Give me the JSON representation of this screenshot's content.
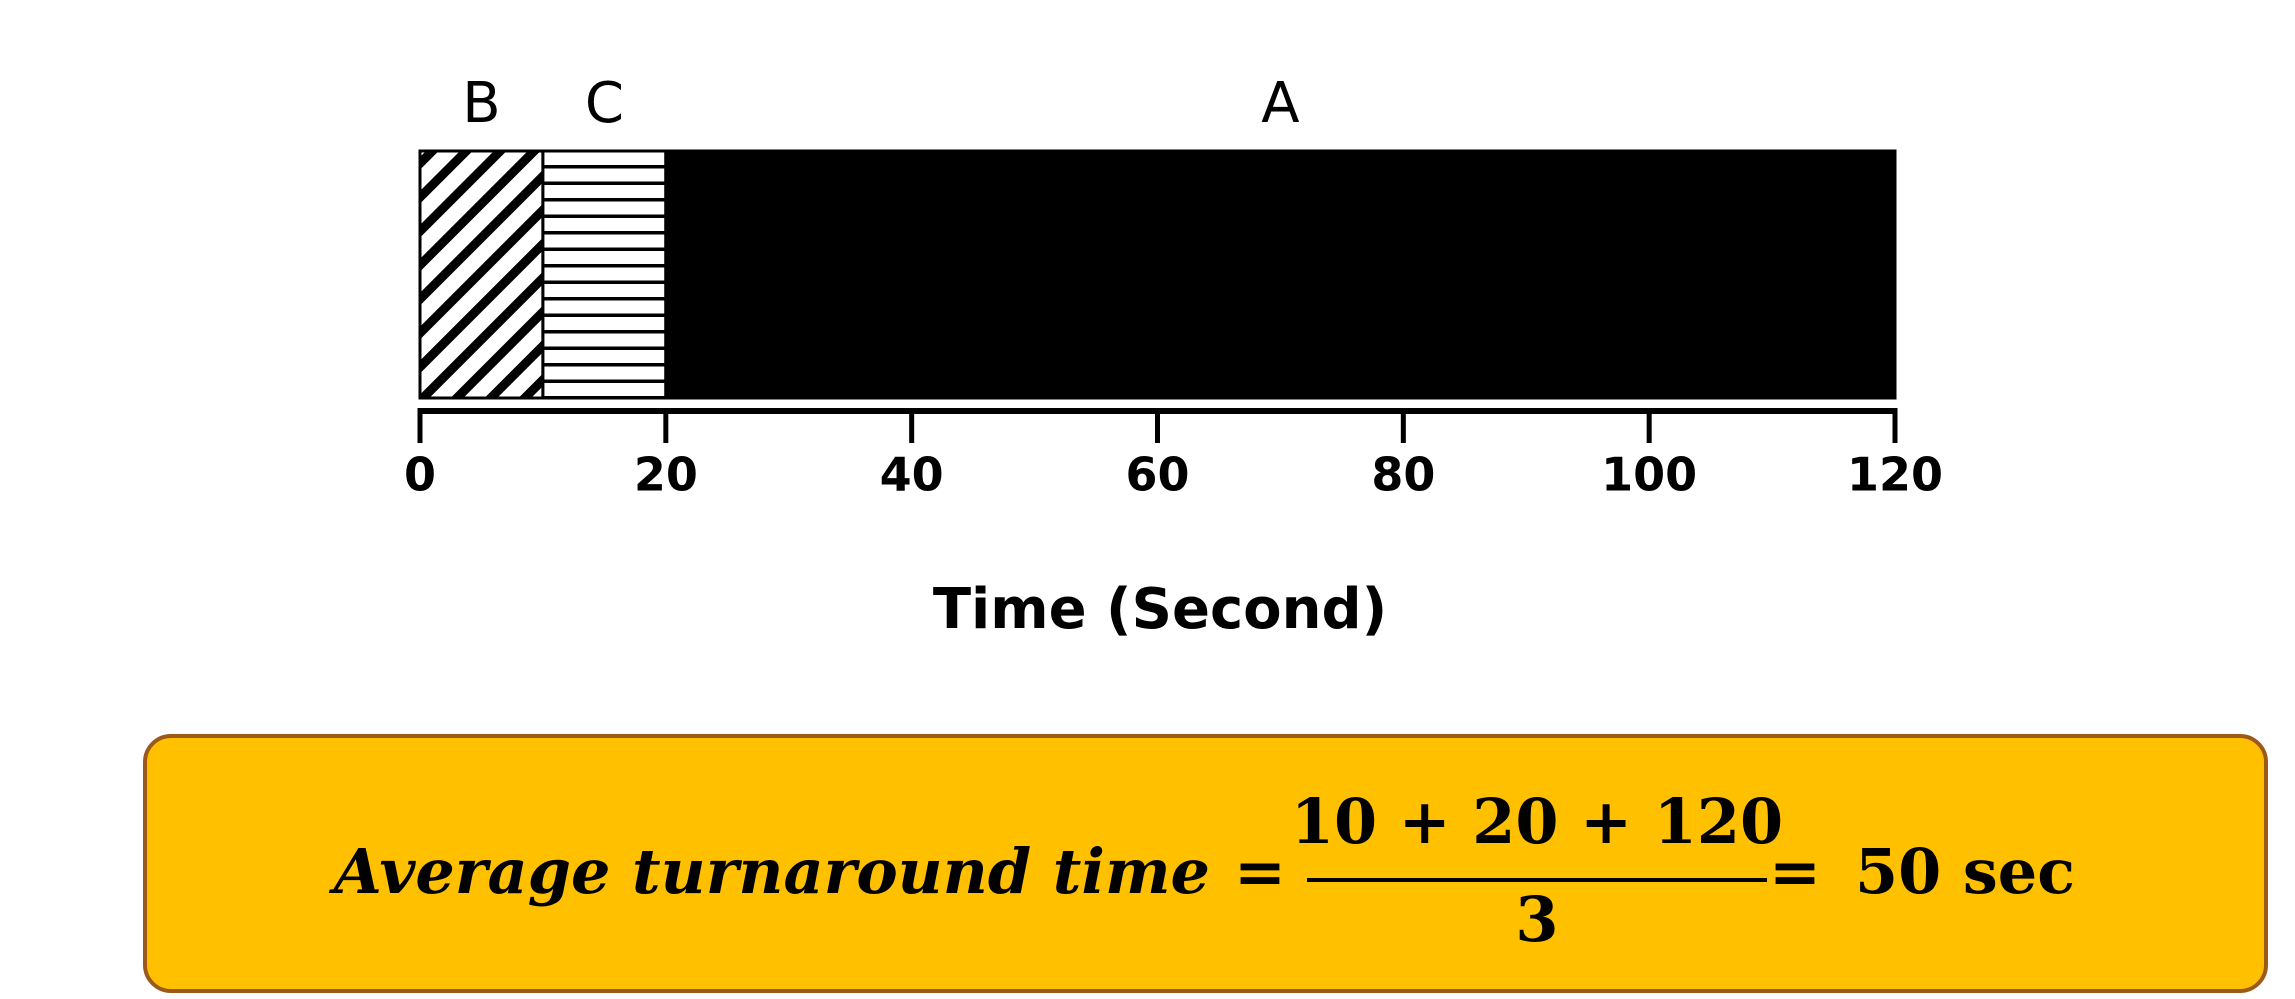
{
  "chart_data": {
    "type": "gantt",
    "xlabel": "Time (Second)",
    "xlim": [
      0,
      120
    ],
    "xticks": [
      0,
      20,
      40,
      60,
      80,
      100,
      120
    ],
    "tasks": [
      {
        "name": "B",
        "start": 0,
        "end": 10,
        "pattern": "diagonal",
        "color": "#000000"
      },
      {
        "name": "C",
        "start": 10,
        "end": 20,
        "pattern": "horizontal",
        "color": "#000000"
      },
      {
        "name": "A",
        "start": 20,
        "end": 120,
        "pattern": "solid",
        "color": "#000000"
      }
    ],
    "annotation": {
      "lhs": "Average turnaround time",
      "equals": "=",
      "numerator": "10 + 20 + 120",
      "denominator": "3",
      "result": "50 sec"
    }
  }
}
